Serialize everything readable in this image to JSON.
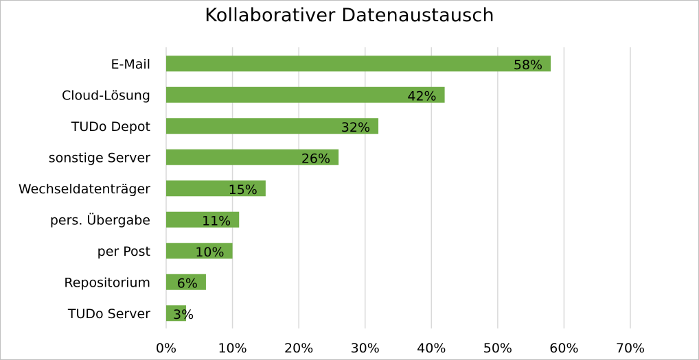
{
  "chart_data": {
    "type": "bar",
    "orientation": "horizontal",
    "title": "Kollaborativer Datenaustausch",
    "categories": [
      "E-Mail",
      "Cloud-Lösung",
      "TUDo Depot",
      "sonstige Server",
      "Wechseldatenträger",
      "pers. Übergabe",
      "per Post",
      "Repositorium",
      "TUDo Server"
    ],
    "values": [
      58,
      42,
      32,
      26,
      15,
      11,
      10,
      6,
      3
    ],
    "data_labels": [
      "58%",
      "42%",
      "32%",
      "26%",
      "15%",
      "11%",
      "10%",
      "6%",
      "3%"
    ],
    "xlim": [
      0,
      70
    ],
    "x_ticks": [
      0,
      10,
      20,
      30,
      40,
      50,
      60,
      70
    ],
    "x_tick_labels": [
      "0%",
      "10%",
      "20%",
      "30%",
      "40%",
      "50%",
      "60%",
      "70%"
    ],
    "grid": "vertical",
    "legend": "none",
    "bar_color": "#70ad47",
    "grid_color": "#d9d9d9"
  }
}
